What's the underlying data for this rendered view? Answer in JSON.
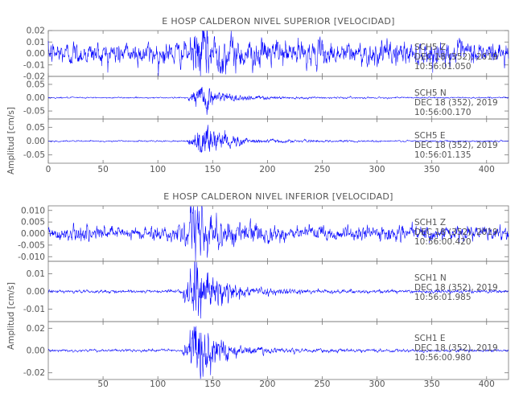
{
  "chart_data": [
    {
      "type": "line",
      "title": "E HOSP CALDERON NIVEL SUPERIOR [VELOCIDAD]",
      "ylabel": "Amplitud [cm/s]",
      "xlim": [
        0,
        420
      ],
      "x_ticks": [
        "0",
        "50",
        "100",
        "150",
        "200",
        "250",
        "300",
        "350",
        "400"
      ],
      "color": "#0000ff",
      "series": [
        {
          "name": "SCH5 Z",
          "annotation": [
            "SCH5 Z",
            "DEC 18 (352), 2019",
            "10:56:01.050"
          ],
          "ylim": [
            -0.02,
            0.02
          ],
          "y_ticks": [
            "0.02",
            "0.01",
            "0.00",
            "-0.01",
            "-0.02"
          ],
          "arrival_s": 135,
          "background_amp": 0.0072,
          "peak_amp": 0.019
        },
        {
          "name": "SCH5 N",
          "annotation": [
            "SCH5 N",
            "DEC 18 (352), 2019",
            "10:56:00.170"
          ],
          "ylim": [
            -0.08,
            0.08
          ],
          "y_ticks": [
            "0.05",
            "0.00",
            "-0.05"
          ],
          "arrival_s": 135,
          "background_amp": 0.0018,
          "peak_amp": 0.042
        },
        {
          "name": "SCH5 E",
          "annotation": [
            "SCH5 E",
            "DEC 18 (352), 2019",
            "10:56:01.135"
          ],
          "ylim": [
            -0.08,
            0.08
          ],
          "y_ticks": [
            "0.05",
            "0.00",
            "-0.05"
          ],
          "arrival_s": 135,
          "background_amp": 0.0018,
          "peak_amp": 0.055
        }
      ]
    },
    {
      "type": "line",
      "title": "E HOSP CALDERON NIVEL INFERIOR [VELOCIDAD]",
      "ylabel": "Amplitud [cm/s]",
      "xlim": [
        0,
        420
      ],
      "x_ticks": [
        "50",
        "100",
        "150",
        "200",
        "250",
        "300",
        "350",
        "400"
      ],
      "color": "#0000ff",
      "series": [
        {
          "name": "SCH1 Z",
          "annotation": [
            "SCH1 Z",
            "DEC 18 (352), 2019",
            "10:56:00.420"
          ],
          "ylim": [
            -0.012,
            0.012
          ],
          "y_ticks": [
            "0.010",
            "0.005",
            "0.000",
            "-0.005",
            "-0.010"
          ],
          "arrival_s": 130,
          "background_amp": 0.0022,
          "peak_amp": 0.0105
        },
        {
          "name": "SCH1 N",
          "annotation": [
            "SCH1 N",
            "DEC 18 (352), 2019",
            "10:56:01.985"
          ],
          "ylim": [
            -0.017,
            0.017
          ],
          "y_ticks": [
            "0.01",
            "0.00",
            "-0.01"
          ],
          "arrival_s": 130,
          "background_amp": 0.0006,
          "peak_amp": 0.0135
        },
        {
          "name": "SCH1 E",
          "annotation": [
            "SCH1 E",
            "DEC 18 (352), 2019",
            "10:56:00.980"
          ],
          "ylim": [
            -0.026,
            0.026
          ],
          "y_ticks": [
            "0.02",
            "0.00",
            "-0.02"
          ],
          "arrival_s": 130,
          "background_amp": 0.0008,
          "peak_amp": 0.022
        }
      ]
    }
  ]
}
